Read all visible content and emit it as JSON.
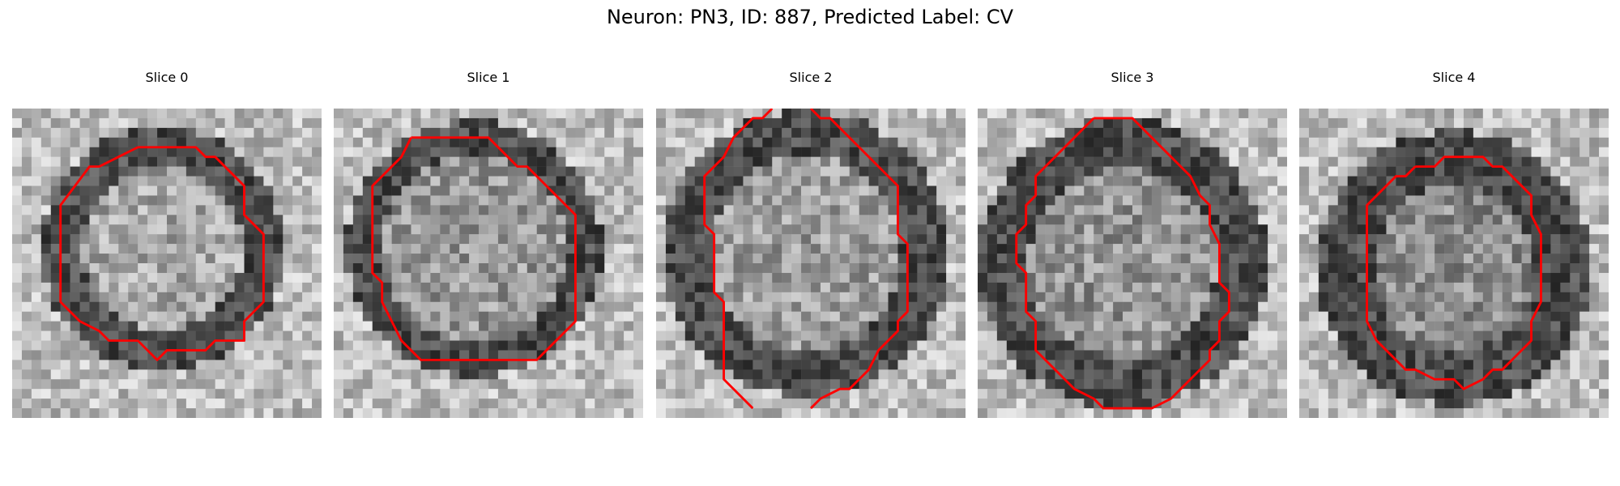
{
  "figure": {
    "title": "Neuron: PN3, ID: 887, Predicted Label: CV"
  },
  "colors": {
    "contour": "#ff0000",
    "background": "#ffffff"
  },
  "panels": [
    {
      "title": "Slice 0"
    },
    {
      "title": "Slice 1"
    },
    {
      "title": "Slice 2"
    },
    {
      "title": "Slice 3"
    },
    {
      "title": "Slice 4"
    }
  ]
}
